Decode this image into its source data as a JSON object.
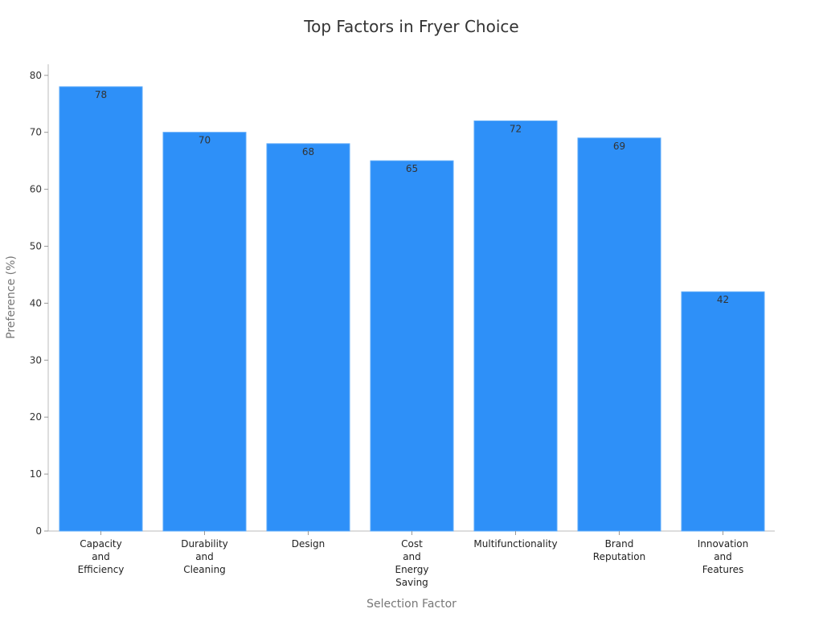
{
  "chart_data": {
    "type": "bar",
    "title": "Top Factors in Fryer Choice",
    "xlabel": "Selection Factor",
    "ylabel": "Preference (%)",
    "categories": [
      [
        "Capacity",
        "and",
        "Efficiency"
      ],
      [
        "Durability",
        "and",
        "Cleaning"
      ],
      [
        "Design"
      ],
      [
        "Cost",
        "and",
        "Energy",
        "Saving"
      ],
      [
        "Multifunctionality"
      ],
      [
        "Brand",
        "Reputation"
      ],
      [
        "Innovation",
        "and",
        "Features"
      ]
    ],
    "values": [
      78,
      70,
      68,
      65,
      72,
      69,
      42
    ],
    "ylim": [
      0,
      82
    ],
    "yticks": [
      0,
      10,
      20,
      30,
      40,
      50,
      60,
      70,
      80
    ],
    "bar_color": "#2e90f8",
    "grid": false,
    "legend": "none"
  }
}
